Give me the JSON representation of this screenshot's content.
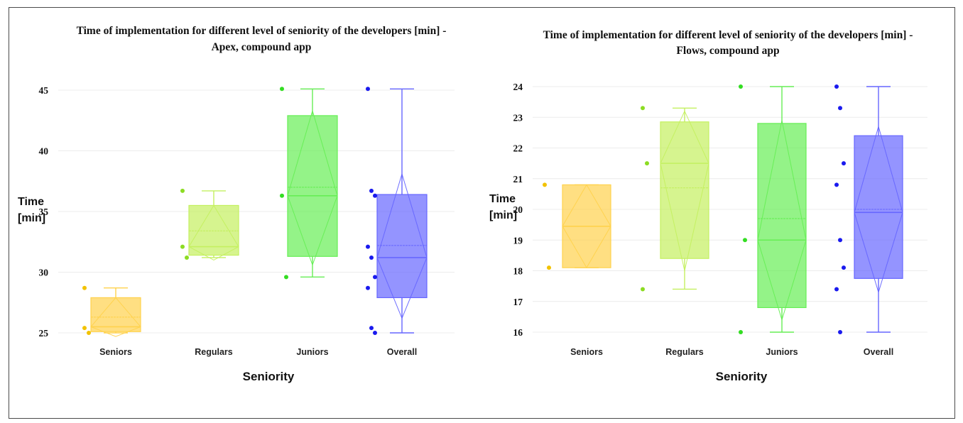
{
  "chart_data": [
    {
      "type": "box",
      "title": "Time of implementation for different level of seniority of the developers [min] -",
      "subtitle": "Apex, compound app",
      "xlabel": "Seniority",
      "ylabel": "Time",
      "ylabel_unit": "[min]",
      "ylim": [
        24.5,
        45.5
      ],
      "yticks": [
        25,
        30,
        35,
        40,
        45
      ],
      "grid": true,
      "notched": true,
      "categories": [
        "Seniors",
        "Regulars",
        "Juniors",
        "Overall"
      ],
      "colors": [
        "#ffd24d",
        "#c4f060",
        "#66ee55",
        "#6666ff"
      ],
      "point_colors": [
        "#f2c200",
        "#8cdc22",
        "#33dd22",
        "#1a1aee"
      ],
      "boxes": [
        {
          "category": "Seniors",
          "min": 25.0,
          "q1": 25.1,
          "median": 25.5,
          "mean": 26.3,
          "q3": 27.9,
          "max": 28.7,
          "notch_low": 24.7,
          "notch_high": 27.9,
          "points": [
            25.4,
            25.0,
            28.7
          ]
        },
        {
          "category": "Regulars",
          "min": 31.2,
          "q1": 31.4,
          "median": 32.1,
          "mean": 33.4,
          "q3": 35.5,
          "max": 36.7,
          "notch_low": 31.0,
          "notch_high": 35.5,
          "points": [
            32.1,
            31.2,
            36.7
          ]
        },
        {
          "category": "Juniors",
          "min": 29.6,
          "q1": 31.3,
          "median": 36.3,
          "mean": 37.0,
          "q3": 42.9,
          "max": 45.1,
          "notch_low": 30.6,
          "notch_high": 43.3,
          "points": [
            36.3,
            29.6,
            45.1
          ]
        },
        {
          "category": "Overall",
          "min": 25.0,
          "q1": 27.9,
          "median": 31.2,
          "mean": 32.2,
          "q3": 36.4,
          "max": 45.1,
          "notch_low": 26.2,
          "notch_high": 38.1,
          "points": [
            45.1,
            36.7,
            36.3,
            32.1,
            31.2,
            29.6,
            28.7,
            25.4,
            25.0
          ]
        }
      ]
    },
    {
      "type": "box",
      "title": "Time of implementation for different level of seniority of the developers [min] -",
      "subtitle": "Flows, compound app",
      "xlabel": "Seniority",
      "ylabel": "Time",
      "ylabel_unit": "[min]",
      "ylim": [
        15.85,
        24.15
      ],
      "yticks": [
        16,
        17,
        18,
        19,
        20,
        21,
        22,
        23,
        24
      ],
      "grid": true,
      "notched": true,
      "categories": [
        "Seniors",
        "Regulars",
        "Juniors",
        "Overall"
      ],
      "colors": [
        "#ffd24d",
        "#c4f060",
        "#66ee55",
        "#6666ff"
      ],
      "point_colors": [
        "#f2c200",
        "#8cdc22",
        "#33dd22",
        "#1a1aee"
      ],
      "boxes": [
        {
          "category": "Seniors",
          "min": 18.1,
          "q1": 18.1,
          "median": 19.45,
          "mean": 19.45,
          "q3": 20.8,
          "max": 20.8,
          "notch_low": 18.1,
          "notch_high": 20.8,
          "points": [
            20.8,
            18.1
          ]
        },
        {
          "category": "Regulars",
          "min": 17.4,
          "q1": 18.4,
          "median": 21.5,
          "mean": 20.7,
          "q3": 22.85,
          "max": 23.3,
          "notch_low": 18.0,
          "notch_high": 23.2,
          "points": [
            23.3,
            21.5,
            17.4
          ]
        },
        {
          "category": "Juniors",
          "min": 16.0,
          "q1": 16.8,
          "median": 19.0,
          "mean": 19.7,
          "q3": 22.8,
          "max": 24.0,
          "notch_low": 16.4,
          "notch_high": 22.9,
          "points": [
            24.0,
            19.0,
            16.0
          ]
        },
        {
          "category": "Overall",
          "min": 16.0,
          "q1": 17.75,
          "median": 19.9,
          "mean": 20.0,
          "q3": 22.4,
          "max": 24.0,
          "notch_low": 17.3,
          "notch_high": 22.7,
          "points": [
            24.0,
            23.3,
            21.5,
            20.8,
            19.0,
            18.1,
            17.4,
            16.0
          ]
        }
      ]
    }
  ]
}
